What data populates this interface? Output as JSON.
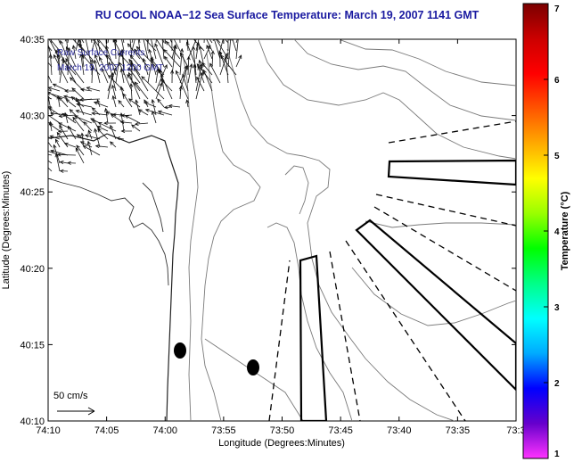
{
  "title": "RU COOL  NOAA−12  Sea Surface Temperature:  March 19, 2007 1141 GMT",
  "map": {
    "xlabel": "Longitude (Degrees:Minutes)",
    "ylabel": "Latitude (Degrees:Minutes)",
    "x_ticks": [
      "74:10",
      "74:05",
      "74:00",
      "73:55",
      "73:50",
      "73:45",
      "73:40",
      "73:35",
      "73:3"
    ],
    "y_ticks": [
      "40:35",
      "40:30",
      "40:25",
      "40:20",
      "40:15",
      "40:10"
    ],
    "legend_line1": "Raw Surface Currents",
    "legend_line2": "March 19, 2007 1200 GMT",
    "scale_label": "50 cm/s",
    "colors": {
      "title": "#1a1aa0",
      "contour": "#7a7a7a",
      "legend_text": "#2b2b9a"
    }
  },
  "colorbar": {
    "label": "Temperature (°C)",
    "ticks": [
      "1",
      "2",
      "3",
      "4",
      "5",
      "6",
      "7"
    ],
    "range": [
      1,
      7
    ],
    "colors": [
      "#ff33ff",
      "#6600cc",
      "#0000ff",
      "#00aaff",
      "#00ffff",
      "#00ff88",
      "#00ff00",
      "#99ff00",
      "#ffff00",
      "#ffaa00",
      "#ff5500",
      "#ff0000",
      "#cc0000",
      "#7a0000"
    ]
  },
  "icons": {
    "current_vectors": "arrow-field",
    "stations": "dot-marker",
    "scale": "arrow-scale"
  }
}
